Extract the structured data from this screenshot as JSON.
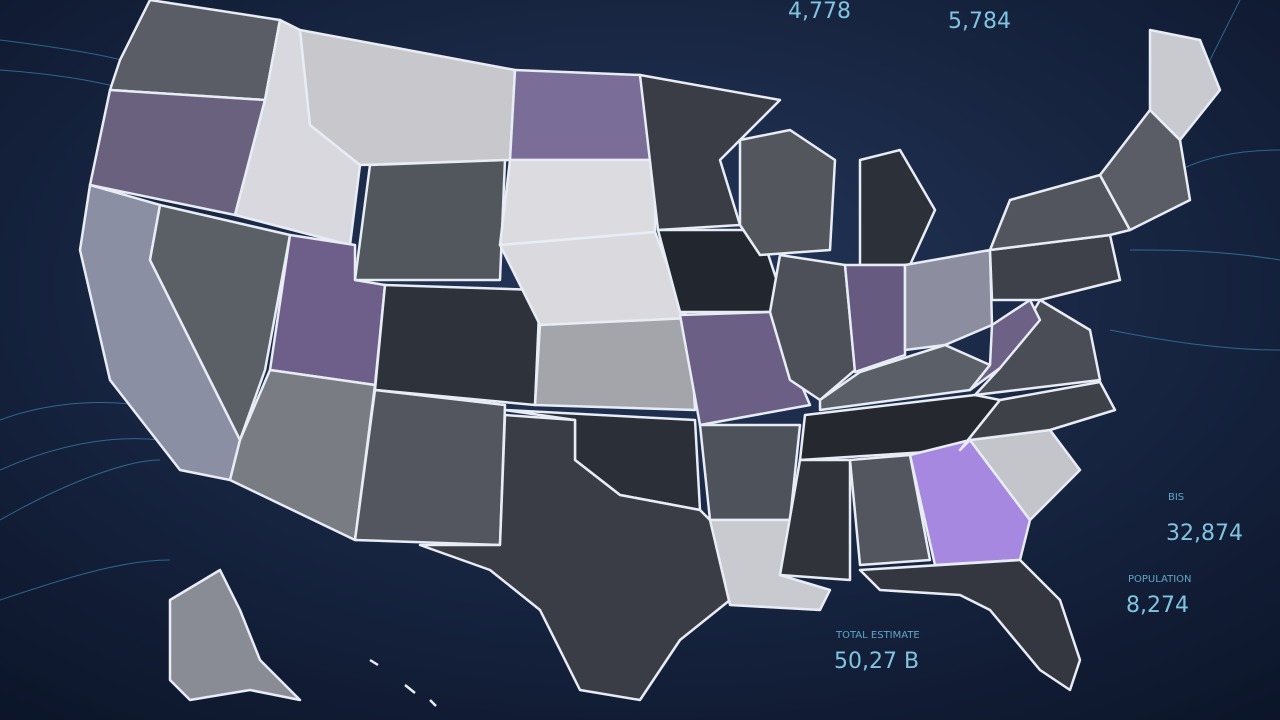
{
  "top_labels": [
    "4,778",
    "5,784"
  ],
  "stats": [
    {
      "caption": "BIS",
      "value": "32,874"
    },
    {
      "caption": "POPULATION",
      "value": "8,274"
    },
    {
      "caption": "TOTAL ESTIMATE",
      "value": "50,27 B"
    }
  ]
}
